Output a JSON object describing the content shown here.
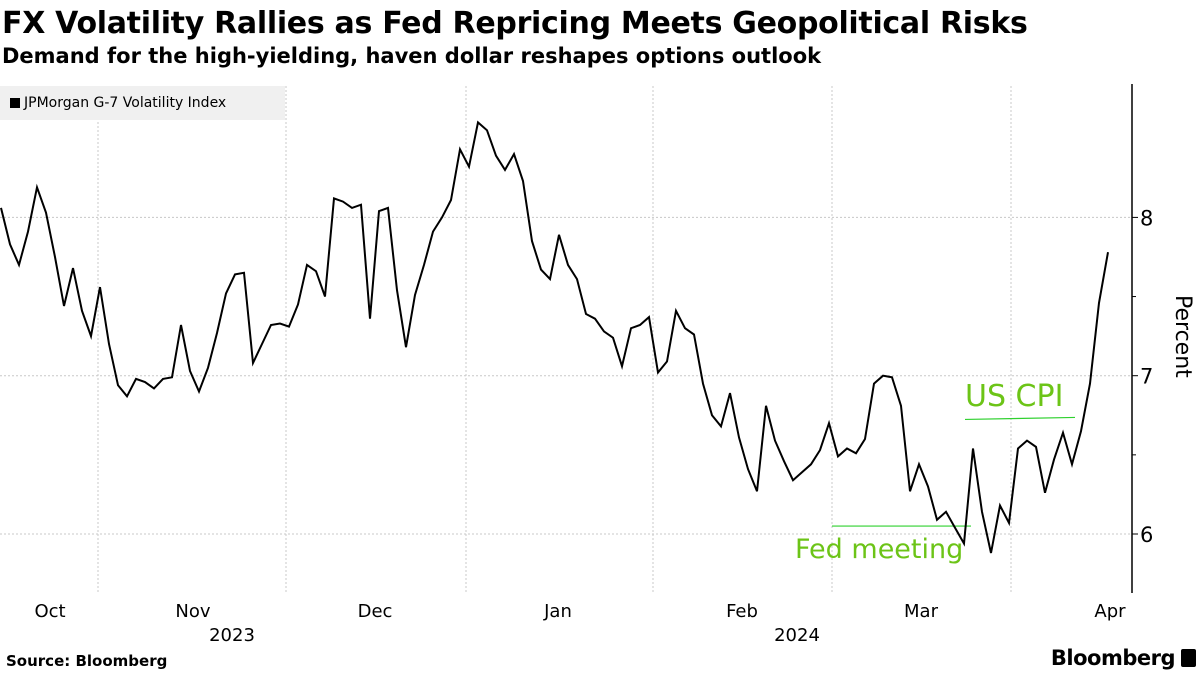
{
  "header": {
    "title": "FX Volatility Rallies as Fed Repricing Meets Geopolitical Risks",
    "subtitle": "Demand for the high-yielding, haven dollar reshapes options outlook"
  },
  "footer": {
    "source": "Source: Bloomberg",
    "logo": "Bloomberg"
  },
  "colors": {
    "line": "#000000",
    "annotation": "#6cc417",
    "grid": "#c8c8c8",
    "legend_bg": "#f0f0f0"
  },
  "chart_data": {
    "type": "line",
    "title": "FX Volatility Rallies as Fed Repricing Meets Geopolitical Risks",
    "legend": [
      "JPMorgan G-7 Volatility Index"
    ],
    "legend_placement": "top-left",
    "ylabel": "Percent",
    "ylim": [
      5.6,
      8.85
    ],
    "yticks": [
      "6",
      "7",
      "8"
    ],
    "xticks": [
      "Oct",
      "Nov",
      "Dec",
      "Jan",
      "Feb",
      "Mar",
      "Apr"
    ],
    "years": [
      "2023",
      "2024"
    ],
    "grid": true,
    "series": [
      {
        "name": "JPMorgan G-7 Volatility Index",
        "values": [
          8.06,
          7.83,
          7.7,
          7.91,
          8.19,
          8.03,
          7.75,
          7.44,
          7.68,
          7.41,
          7.25,
          7.56,
          7.2,
          6.94,
          6.87,
          6.98,
          6.96,
          6.92,
          6.98,
          6.99,
          7.32,
          7.03,
          6.9,
          7.05,
          7.27,
          7.52,
          7.64,
          7.65,
          7.08,
          7.2,
          7.32,
          7.33,
          7.31,
          7.45,
          7.7,
          7.66,
          7.5,
          8.12,
          8.1,
          8.06,
          8.08,
          7.36,
          8.04,
          8.06,
          7.54,
          7.18,
          7.51,
          7.7,
          7.91,
          8.0,
          8.11,
          8.43,
          8.32,
          8.6,
          8.55,
          8.39,
          8.3,
          8.4,
          8.23,
          7.85,
          7.67,
          7.61,
          7.89,
          7.7,
          7.61,
          7.39,
          7.36,
          7.28,
          7.24,
          7.06,
          7.3,
          7.32,
          7.37,
          7.02,
          7.09,
          7.41,
          7.3,
          7.26,
          6.95,
          6.75,
          6.68,
          6.89,
          6.61,
          6.41,
          6.27,
          6.81,
          6.59,
          6.46,
          6.34,
          6.39,
          6.44,
          6.53,
          6.7,
          6.49,
          6.54,
          6.51,
          6.6,
          6.95,
          7.0,
          6.99,
          6.81,
          6.27,
          6.44,
          6.3,
          6.09,
          6.14,
          6.04,
          5.94,
          6.54,
          6.14,
          5.88,
          6.18,
          6.07,
          6.54,
          6.59,
          6.55,
          6.26,
          6.47,
          6.64,
          6.44,
          6.65,
          6.95,
          7.46,
          7.78
        ]
      }
    ],
    "annotations": [
      {
        "text": "Fed meeting",
        "value": 6.05
      },
      {
        "text": "US CPI",
        "value": 6.73
      }
    ]
  }
}
